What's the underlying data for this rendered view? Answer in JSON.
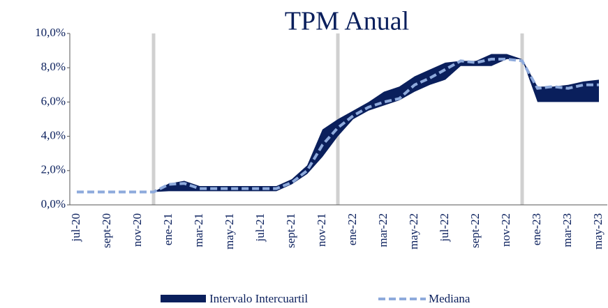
{
  "chart_data": {
    "type": "band_line",
    "title": "TPM Anual",
    "categories": [
      "jul-20",
      null,
      "sept-20",
      null,
      "nov-20",
      null,
      "ene-21",
      null,
      "mar-21",
      null,
      "may-21",
      null,
      "jul-21",
      null,
      "sept-21",
      null,
      "nov-21",
      null,
      "ene-22",
      null,
      "mar-22",
      null,
      "may-22",
      null,
      "jul-22",
      null,
      "sept-22",
      null,
      "nov-22",
      null,
      "ene-23",
      null,
      "mar-23",
      null,
      "may-23"
    ],
    "series": [
      {
        "name": "Intervalo Intercuartil",
        "color": "#0a1f5c",
        "low": [
          null,
          null,
          null,
          null,
          null,
          0.75,
          0.8,
          0.8,
          0.8,
          0.8,
          0.8,
          0.8,
          0.8,
          0.8,
          1.2,
          1.8,
          2.8,
          4.0,
          5.0,
          5.5,
          5.8,
          6.1,
          6.6,
          7.0,
          7.3,
          8.1,
          8.1,
          8.1,
          8.5,
          8.5,
          6.0,
          6.0,
          6.0,
          6.0,
          6.0
        ],
        "high": [
          null,
          null,
          null,
          null,
          null,
          0.75,
          1.25,
          1.4,
          1.1,
          1.1,
          1.1,
          1.1,
          1.1,
          1.1,
          1.5,
          2.3,
          4.4,
          5.0,
          5.5,
          6.0,
          6.6,
          6.9,
          7.5,
          7.9,
          8.3,
          8.4,
          8.4,
          8.8,
          8.8,
          8.5,
          6.9,
          6.9,
          7.0,
          7.2,
          7.3
        ]
      },
      {
        "name": "Mediana",
        "color": "#8eaadc",
        "values": [
          0.75,
          0.75,
          0.75,
          0.75,
          0.75,
          0.75,
          1.2,
          1.25,
          0.95,
          0.95,
          0.95,
          0.95,
          0.95,
          0.95,
          1.3,
          2.0,
          3.5,
          4.5,
          5.2,
          5.7,
          6.0,
          6.2,
          7.0,
          7.4,
          7.9,
          8.4,
          8.3,
          8.5,
          8.5,
          8.4,
          6.8,
          6.9,
          6.8,
          7.0,
          7.0
        ]
      }
    ],
    "ylim": [
      0,
      10
    ],
    "yticks": [
      {
        "value": 0,
        "label": "0,0%"
      },
      {
        "value": 2,
        "label": "2,0%"
      },
      {
        "value": 4,
        "label": "4,0%"
      },
      {
        "value": 6,
        "label": "6,0%"
      },
      {
        "value": 8,
        "label": "8,0%"
      },
      {
        "value": 10,
        "label": "10,0%"
      }
    ]
  }
}
